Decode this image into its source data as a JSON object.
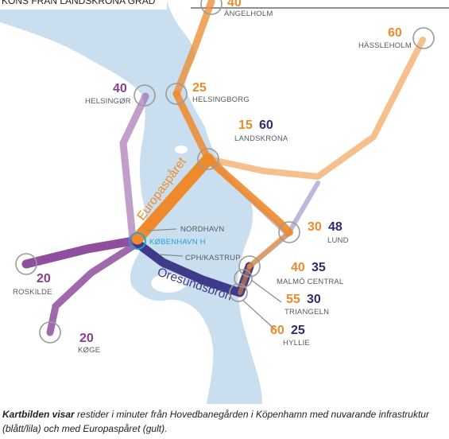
{
  "header_fragment": "KONS FRÅN LANDSKRONA GRAD",
  "route_labels": {
    "europasparet": "Europaspåret",
    "oresundsbron": "Öresundsbron"
  },
  "stations": {
    "angelholm": {
      "name": "ÄNGELHOLM",
      "times": [
        "40"
      ]
    },
    "hassleholm": {
      "name": "HÄSSLEHOLM",
      "times": [
        "60"
      ]
    },
    "helsingor": {
      "name": "HELSINGØR",
      "times": [
        "40"
      ]
    },
    "helsingborg": {
      "name": "HELSINGBORG",
      "times": [
        "25"
      ]
    },
    "landskrona": {
      "name": "LANDSKRONA",
      "times": [
        "15",
        "60"
      ]
    },
    "lund": {
      "name": "LUND",
      "times": [
        "30",
        "48"
      ]
    },
    "nordhavn": {
      "name": "NORDHAVN",
      "times": []
    },
    "kobenhavn": {
      "name": "KØBENHAVN H",
      "times": []
    },
    "kastrup": {
      "name": "CPH/KASTRUP",
      "times": []
    },
    "malmo": {
      "name": "MALMÖ CENTRAL",
      "times": [
        "40",
        "35"
      ]
    },
    "triangeln": {
      "name": "TRIANGELN",
      "times": [
        "55",
        "30"
      ]
    },
    "hyllie": {
      "name": "HYLLIE",
      "times": [
        "60",
        "25"
      ]
    },
    "roskilde": {
      "name": "ROSKILDE",
      "times": [
        "20"
      ]
    },
    "koge": {
      "name": "KØGE",
      "times": [
        "20"
      ]
    }
  },
  "colors": {
    "water": "#c9deef",
    "land": "#ffffff",
    "europasparet": "#ee8a2b",
    "existing_blue": "#3f3a8a",
    "existing_lilac": "#8f4f9e",
    "kobenhavn_accent": "#1aa3d8"
  },
  "caption": {
    "lead": "Kartbilden visar",
    "text": " restider i minuter från Hovedbanegården i Köpenhamn med nuvarande infrastruktur (blått/lila) och med Europaspåret (gult)."
  }
}
